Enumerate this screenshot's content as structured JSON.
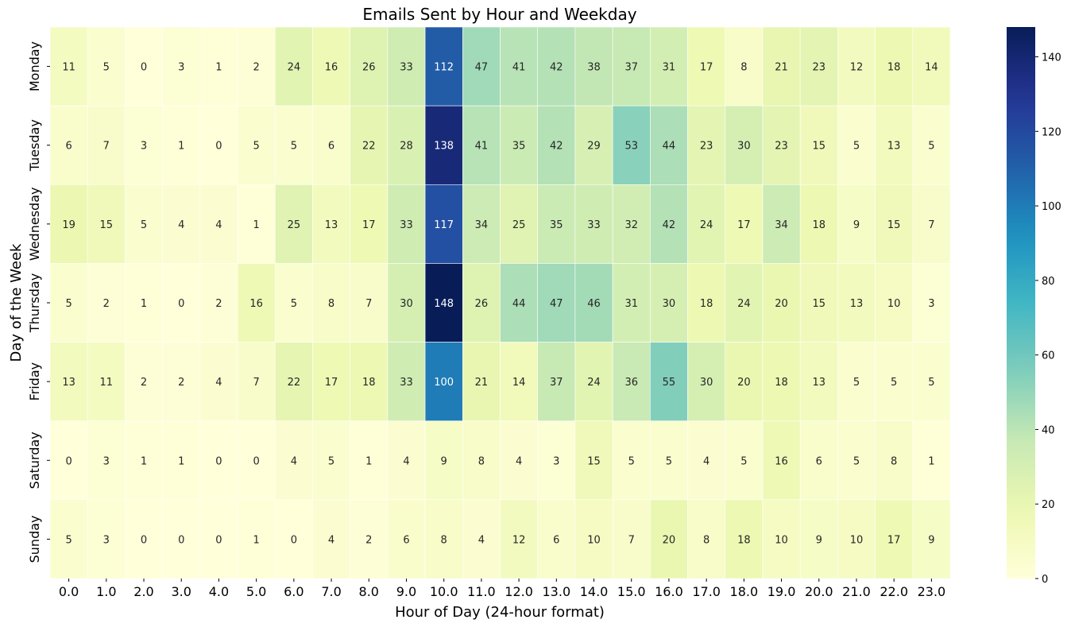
{
  "chart_data": {
    "type": "heatmap",
    "title": "Emails Sent by Hour and Weekday",
    "xlabel": "Hour of Day (24-hour format)",
    "ylabel": "Day of the Week",
    "x_categories": [
      "0.0",
      "1.0",
      "2.0",
      "3.0",
      "4.0",
      "5.0",
      "6.0",
      "7.0",
      "8.0",
      "9.0",
      "10.0",
      "11.0",
      "12.0",
      "13.0",
      "14.0",
      "15.0",
      "16.0",
      "17.0",
      "18.0",
      "19.0",
      "20.0",
      "21.0",
      "22.0",
      "23.0"
    ],
    "y_categories": [
      "Monday",
      "Tuesday",
      "Wednesday",
      "Thursday",
      "Friday",
      "Saturday",
      "Sunday"
    ],
    "values": [
      [
        11,
        5,
        0,
        3,
        1,
        2,
        24,
        16,
        26,
        33,
        112,
        47,
        41,
        42,
        38,
        37,
        31,
        17,
        8,
        21,
        23,
        12,
        18,
        14
      ],
      [
        6,
        7,
        3,
        1,
        0,
        5,
        5,
        6,
        22,
        28,
        138,
        41,
        35,
        42,
        29,
        53,
        44,
        23,
        30,
        23,
        15,
        5,
        13,
        5
      ],
      [
        19,
        15,
        5,
        4,
        4,
        1,
        25,
        13,
        17,
        33,
        117,
        34,
        25,
        35,
        33,
        32,
        42,
        24,
        17,
        34,
        18,
        9,
        15,
        7
      ],
      [
        5,
        2,
        1,
        0,
        2,
        16,
        5,
        8,
        7,
        30,
        148,
        26,
        44,
        47,
        46,
        31,
        30,
        18,
        24,
        20,
        15,
        13,
        10,
        3
      ],
      [
        13,
        11,
        2,
        2,
        4,
        7,
        22,
        17,
        18,
        33,
        100,
        21,
        14,
        37,
        24,
        36,
        55,
        30,
        20,
        18,
        13,
        5,
        5,
        5
      ],
      [
        0,
        3,
        1,
        1,
        0,
        0,
        4,
        5,
        1,
        4,
        9,
        8,
        4,
        3,
        15,
        5,
        5,
        4,
        5,
        16,
        6,
        5,
        8,
        1
      ],
      [
        5,
        3,
        0,
        0,
        0,
        1,
        0,
        4,
        2,
        6,
        8,
        4,
        12,
        6,
        10,
        7,
        20,
        8,
        18,
        10,
        9,
        10,
        17,
        9
      ]
    ],
    "colormap": "YlGnBu",
    "vmin": 0,
    "vmax": 148,
    "colorbar_ticks": [
      "0",
      "20",
      "40",
      "60",
      "80",
      "100",
      "120",
      "140"
    ],
    "annotations": "cell values",
    "grid": false
  }
}
